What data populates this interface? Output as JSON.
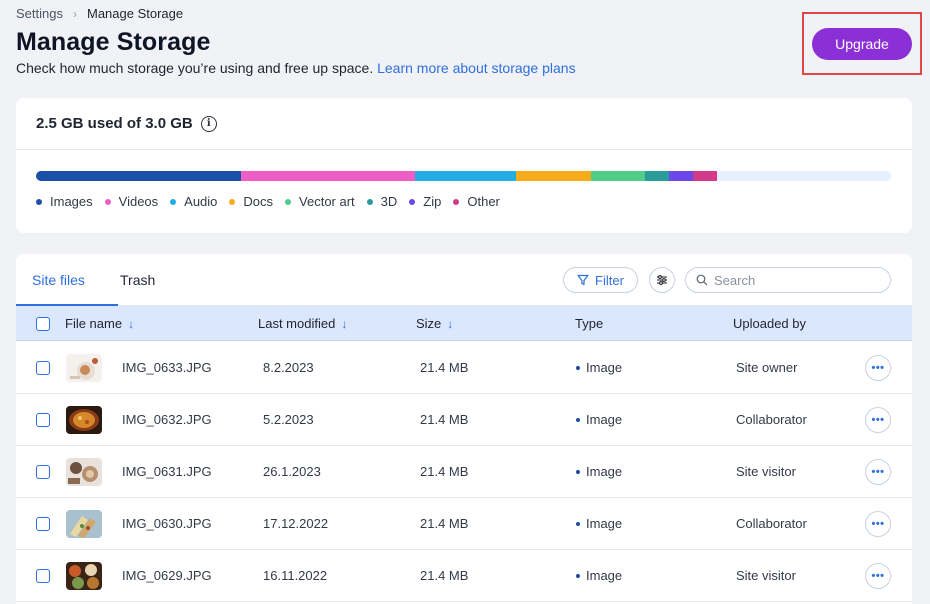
{
  "breadcrumb": {
    "parent": "Settings",
    "current": "Manage Storage"
  },
  "page": {
    "title": "Manage Storage",
    "subtitle": "Check how much storage you’re using and free up space.",
    "learn_more": "Learn more about storage plans",
    "upgrade_label": "Upgrade"
  },
  "storage": {
    "used_label": "2.5 GB used of 3.0 GB",
    "used_fraction": 0.8333,
    "segments": [
      {
        "name": "Images",
        "color": "#1c4fa8",
        "share": 0.24
      },
      {
        "name": "Videos",
        "color": "#ef5ec6",
        "share": 0.203
      },
      {
        "name": "Audio",
        "color": "#22aee0",
        "share": 0.118
      },
      {
        "name": "Docs",
        "color": "#f7ac1c",
        "share": 0.088
      },
      {
        "name": "Vector art",
        "color": "#4fcb8a",
        "share": 0.063
      },
      {
        "name": "3D",
        "color": "#2c9c9a",
        "share": 0.028
      },
      {
        "name": "Zip",
        "color": "#6b47ec",
        "share": 0.028
      },
      {
        "name": "Other",
        "color": "#d13b8a",
        "share": 0.028
      }
    ],
    "unused_color": "#e6efff"
  },
  "files": {
    "tabs": [
      {
        "label": "Site files",
        "active": true
      },
      {
        "label": "Trash",
        "active": false
      }
    ],
    "filter_label": "Filter",
    "search_placeholder": "Search",
    "columns": {
      "name": "File name",
      "modified": "Last modified",
      "size": "Size",
      "type": "Type",
      "uploaded_by": "Uploaded by"
    },
    "sort_icon": "arrow-down-icon",
    "rows": [
      {
        "name": "IMG_0633.JPG",
        "modified": "8.2.2023",
        "size": "21.4 MB",
        "type": "Image",
        "uploaded_by": "Site owner",
        "thumb": "thumb-a"
      },
      {
        "name": "IMG_0632.JPG",
        "modified": "5.2.2023",
        "size": "21.4 MB",
        "type": "Image",
        "uploaded_by": "Collaborator",
        "thumb": "thumb-b"
      },
      {
        "name": "IMG_0631.JPG",
        "modified": "26.1.2023",
        "size": "21.4 MB",
        "type": "Image",
        "uploaded_by": "Site visitor",
        "thumb": "thumb-c"
      },
      {
        "name": "IMG_0630.JPG",
        "modified": "17.12.2022",
        "size": "21.4 MB",
        "type": "Image",
        "uploaded_by": "Collaborator",
        "thumb": "thumb-d"
      },
      {
        "name": "IMG_0629.JPG",
        "modified": "16.11.2022",
        "size": "21.4 MB",
        "type": "Image",
        "uploaded_by": "Site visitor",
        "thumb": "thumb-e"
      }
    ]
  }
}
